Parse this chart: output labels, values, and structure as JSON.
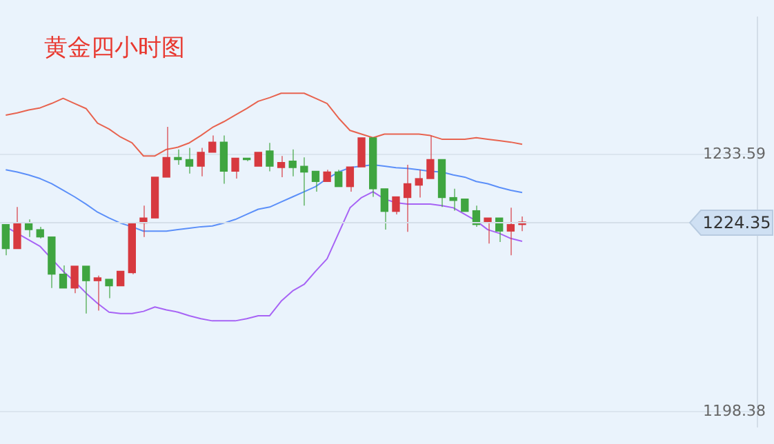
{
  "chart_data": {
    "type": "candlestick",
    "title": "黄金四小时图",
    "categories": [
      null,
      null,
      null,
      null,
      null,
      null,
      null,
      null,
      null,
      null,
      null,
      null,
      null,
      null,
      null,
      null,
      null,
      null,
      null,
      null,
      null,
      null,
      null,
      null,
      null,
      null,
      null,
      null,
      null,
      null,
      null,
      null,
      null,
      null,
      null,
      null,
      null,
      null,
      null,
      null,
      null,
      null,
      null,
      null,
      null,
      null,
      null,
      null,
      null,
      null,
      null,
      null,
      null,
      null,
      null,
      null,
      null,
      null,
      null,
      null,
      null,
      null,
      null,
      null,
      null,
      null
    ],
    "ohlc": [
      [
        1224.0,
        1224.0,
        1219.8,
        1220.7
      ],
      [
        1220.7,
        1226.4,
        1220.7,
        1224.2
      ],
      [
        1224.2,
        1224.7,
        1222.3,
        1223.3
      ],
      [
        1223.3,
        1223.7,
        1222.1,
        1222.3
      ],
      [
        1222.3,
        1222.3,
        1215.3,
        1217.2
      ],
      [
        1217.2,
        1218.4,
        1215.3,
        1215.3
      ],
      [
        1215.3,
        1218.3,
        1214.6,
        1218.3
      ],
      [
        1218.3,
        1218.3,
        1211.8,
        1216.3
      ],
      [
        1216.3,
        1217.0,
        1212.2,
        1216.7
      ],
      [
        1216.5,
        1216.5,
        1213.9,
        1215.6
      ],
      [
        1215.6,
        1217.6,
        1215.6,
        1217.6
      ],
      [
        1217.4,
        1224.2,
        1217.2,
        1224.2
      ],
      [
        1224.2,
        1226.6,
        1222.3,
        1224.9
      ],
      [
        1224.9,
        1230.5,
        1224.9,
        1230.5
      ],
      [
        1230.5,
        1237.4,
        1230.5,
        1233.2
      ],
      [
        1233.2,
        1234.3,
        1232.2,
        1232.9
      ],
      [
        1232.9,
        1234.5,
        1231.0,
        1232.0
      ],
      [
        1232.0,
        1234.5,
        1230.6,
        1233.9
      ],
      [
        1233.9,
        1236.2,
        1233.9,
        1235.3
      ],
      [
        1235.3,
        1236.2,
        1229.6,
        1231.3
      ],
      [
        1231.3,
        1233.1,
        1230.3,
        1233.1
      ],
      [
        1233.1,
        1233.1,
        1232.7,
        1232.9
      ],
      [
        1232.0,
        1233.9,
        1232.0,
        1233.9
      ],
      [
        1234.1,
        1235.2,
        1231.3,
        1232.0
      ],
      [
        1231.8,
        1233.4,
        1230.5,
        1232.5
      ],
      [
        1232.7,
        1234.3,
        1230.6,
        1231.8
      ],
      [
        1232.0,
        1233.2,
        1226.6,
        1231.2
      ],
      [
        1231.3,
        1231.3,
        1228.5,
        1229.9
      ],
      [
        1229.9,
        1231.5,
        1229.9,
        1231.2
      ],
      [
        1231.2,
        1231.5,
        1229.2,
        1229.2
      ],
      [
        1229.2,
        1231.9,
        1228.5,
        1231.9
      ],
      [
        1231.9,
        1235.9,
        1231.9,
        1235.9
      ],
      [
        1235.9,
        1235.9,
        1227.8,
        1228.9
      ],
      [
        1228.9,
        1228.9,
        1223.3,
        1225.8
      ],
      [
        1225.8,
        1227.8,
        1225.4,
        1227.8
      ],
      [
        1227.7,
        1232.2,
        1223.0,
        1229.6
      ],
      [
        1229.4,
        1231.5,
        1227.7,
        1230.3
      ],
      [
        1230.3,
        1236.2,
        1230.3,
        1232.9
      ],
      [
        1232.9,
        1232.9,
        1226.4,
        1227.7
      ],
      [
        1227.7,
        1228.9,
        1225.9,
        1227.3
      ],
      [
        1227.5,
        1227.5,
        1225.8,
        1225.8
      ],
      [
        1225.9,
        1226.6,
        1223.7,
        1224.0
      ],
      [
        1224.4,
        1224.9,
        1221.4,
        1224.9
      ],
      [
        1224.9,
        1224.9,
        1221.6,
        1223.1
      ],
      [
        1223.1,
        1226.3,
        1219.8,
        1224.0
      ],
      [
        1224.0,
        1225.1,
        1223.1,
        1224.35
      ],
      null,
      null,
      null,
      null,
      null,
      null,
      null,
      null,
      null,
      null,
      null,
      null,
      null,
      null,
      null,
      null,
      null,
      null,
      null,
      null
    ],
    "colors": [
      "#3fa540",
      "#d7393f",
      "#3fa540",
      "#3fa540",
      "#3fa540",
      "#3fa540",
      "#d7393f",
      "#3fa540",
      "#d7393f",
      "#3fa540",
      "#d7393f",
      "#d7393f",
      "#d7393f",
      "#d7393f",
      "#d7393f",
      "#3fa540",
      "#3fa540",
      "#d7393f",
      "#d7393f",
      "#3fa540",
      "#d7393f",
      "#3fa540",
      "#d7393f",
      "#3fa540",
      "#d7393f",
      "#3fa540",
      "#3fa540",
      "#3fa540",
      "#d7393f",
      "#3fa540",
      "#d7393f",
      "#d7393f",
      "#3fa540",
      "#3fa540",
      "#d7393f",
      "#d7393f",
      "#d7393f",
      "#d7393f",
      "#3fa540",
      "#3fa540",
      "#3fa540",
      "#3fa540",
      "#d7393f",
      "#3fa540",
      "#d7393f",
      "#d7393f",
      null,
      null,
      null,
      null,
      null,
      null,
      null,
      null,
      null,
      null,
      null,
      null,
      null,
      null,
      null,
      null,
      null,
      null,
      null,
      null
    ],
    "series": [
      {
        "type": "line",
        "color": "#e8634f",
        "values": [
          1239.0,
          1239.3,
          1239.7,
          1240.0,
          1240.6,
          1241.3,
          1240.6,
          1239.9,
          1237.9,
          1237.1,
          1236.0,
          1235.2,
          1233.4,
          1233.4,
          1234.3,
          1234.6,
          1235.2,
          1236.2,
          1237.3,
          1238.1,
          1239.0,
          1239.9,
          1240.9,
          1241.4,
          1242.0,
          1242.0,
          1242.0,
          1241.3,
          1240.6,
          1238.6,
          1236.9,
          1236.4,
          1235.9,
          1236.4,
          1236.4,
          1236.4,
          1236.4,
          1236.2,
          1235.7,
          1235.7,
          1235.7,
          1235.9,
          1235.7,
          1235.5,
          1235.3,
          1235.0,
          null,
          null,
          null,
          null,
          null,
          null,
          null,
          null,
          null,
          null,
          null,
          null,
          null,
          null,
          null,
          null,
          null,
          null,
          null,
          null
        ]
      },
      {
        "type": "line",
        "color": "#5b8ff9",
        "values": [
          1231.5,
          1231.2,
          1230.8,
          1230.3,
          1229.6,
          1228.7,
          1227.8,
          1226.8,
          1225.7,
          1224.9,
          1224.2,
          1223.7,
          1223.1,
          1223.1,
          1223.1,
          1223.3,
          1223.5,
          1223.7,
          1223.8,
          1224.2,
          1224.7,
          1225.4,
          1226.1,
          1226.4,
          1227.1,
          1227.8,
          1228.5,
          1229.2,
          1230.3,
          1231.2,
          1231.8,
          1232.0,
          1232.2,
          1232.0,
          1231.8,
          1231.7,
          1231.5,
          1231.3,
          1231.2,
          1230.8,
          1230.5,
          1229.9,
          1229.6,
          1229.1,
          1228.7,
          1228.4,
          null,
          null,
          null,
          null,
          null,
          null,
          null,
          null,
          null,
          null,
          null,
          null,
          null,
          null,
          null,
          null,
          null,
          null,
          null,
          null
        ]
      },
      {
        "type": "line",
        "color": "#a763f5",
        "values": [
          1223.7,
          1222.8,
          1221.9,
          1221.0,
          1219.3,
          1217.6,
          1216.2,
          1214.6,
          1213.2,
          1212.0,
          1211.8,
          1211.8,
          1212.1,
          1212.7,
          1212.3,
          1212.0,
          1211.5,
          1211.1,
          1210.8,
          1210.8,
          1210.8,
          1211.1,
          1211.5,
          1211.5,
          1213.5,
          1214.9,
          1215.8,
          1217.6,
          1219.3,
          1222.8,
          1226.3,
          1227.7,
          1228.5,
          1227.5,
          1227.0,
          1226.8,
          1226.8,
          1226.8,
          1226.6,
          1226.3,
          1225.4,
          1224.5,
          1223.3,
          1222.8,
          1222.1,
          1221.7,
          null,
          null,
          null,
          null,
          null,
          null,
          null,
          null,
          null,
          null,
          null,
          null,
          null,
          null,
          null,
          null,
          null,
          null,
          null,
          null
        ]
      }
    ],
    "ylim": [
      1196.3,
      1252.4
    ],
    "yticks": [
      1233.59,
      1198.38
    ],
    "grid": "y",
    "legend": false,
    "tick_labels": "y",
    "ref_lines": [
      {
        "axis": "y",
        "value": 1224.35,
        "label": "1224.35"
      }
    ]
  }
}
